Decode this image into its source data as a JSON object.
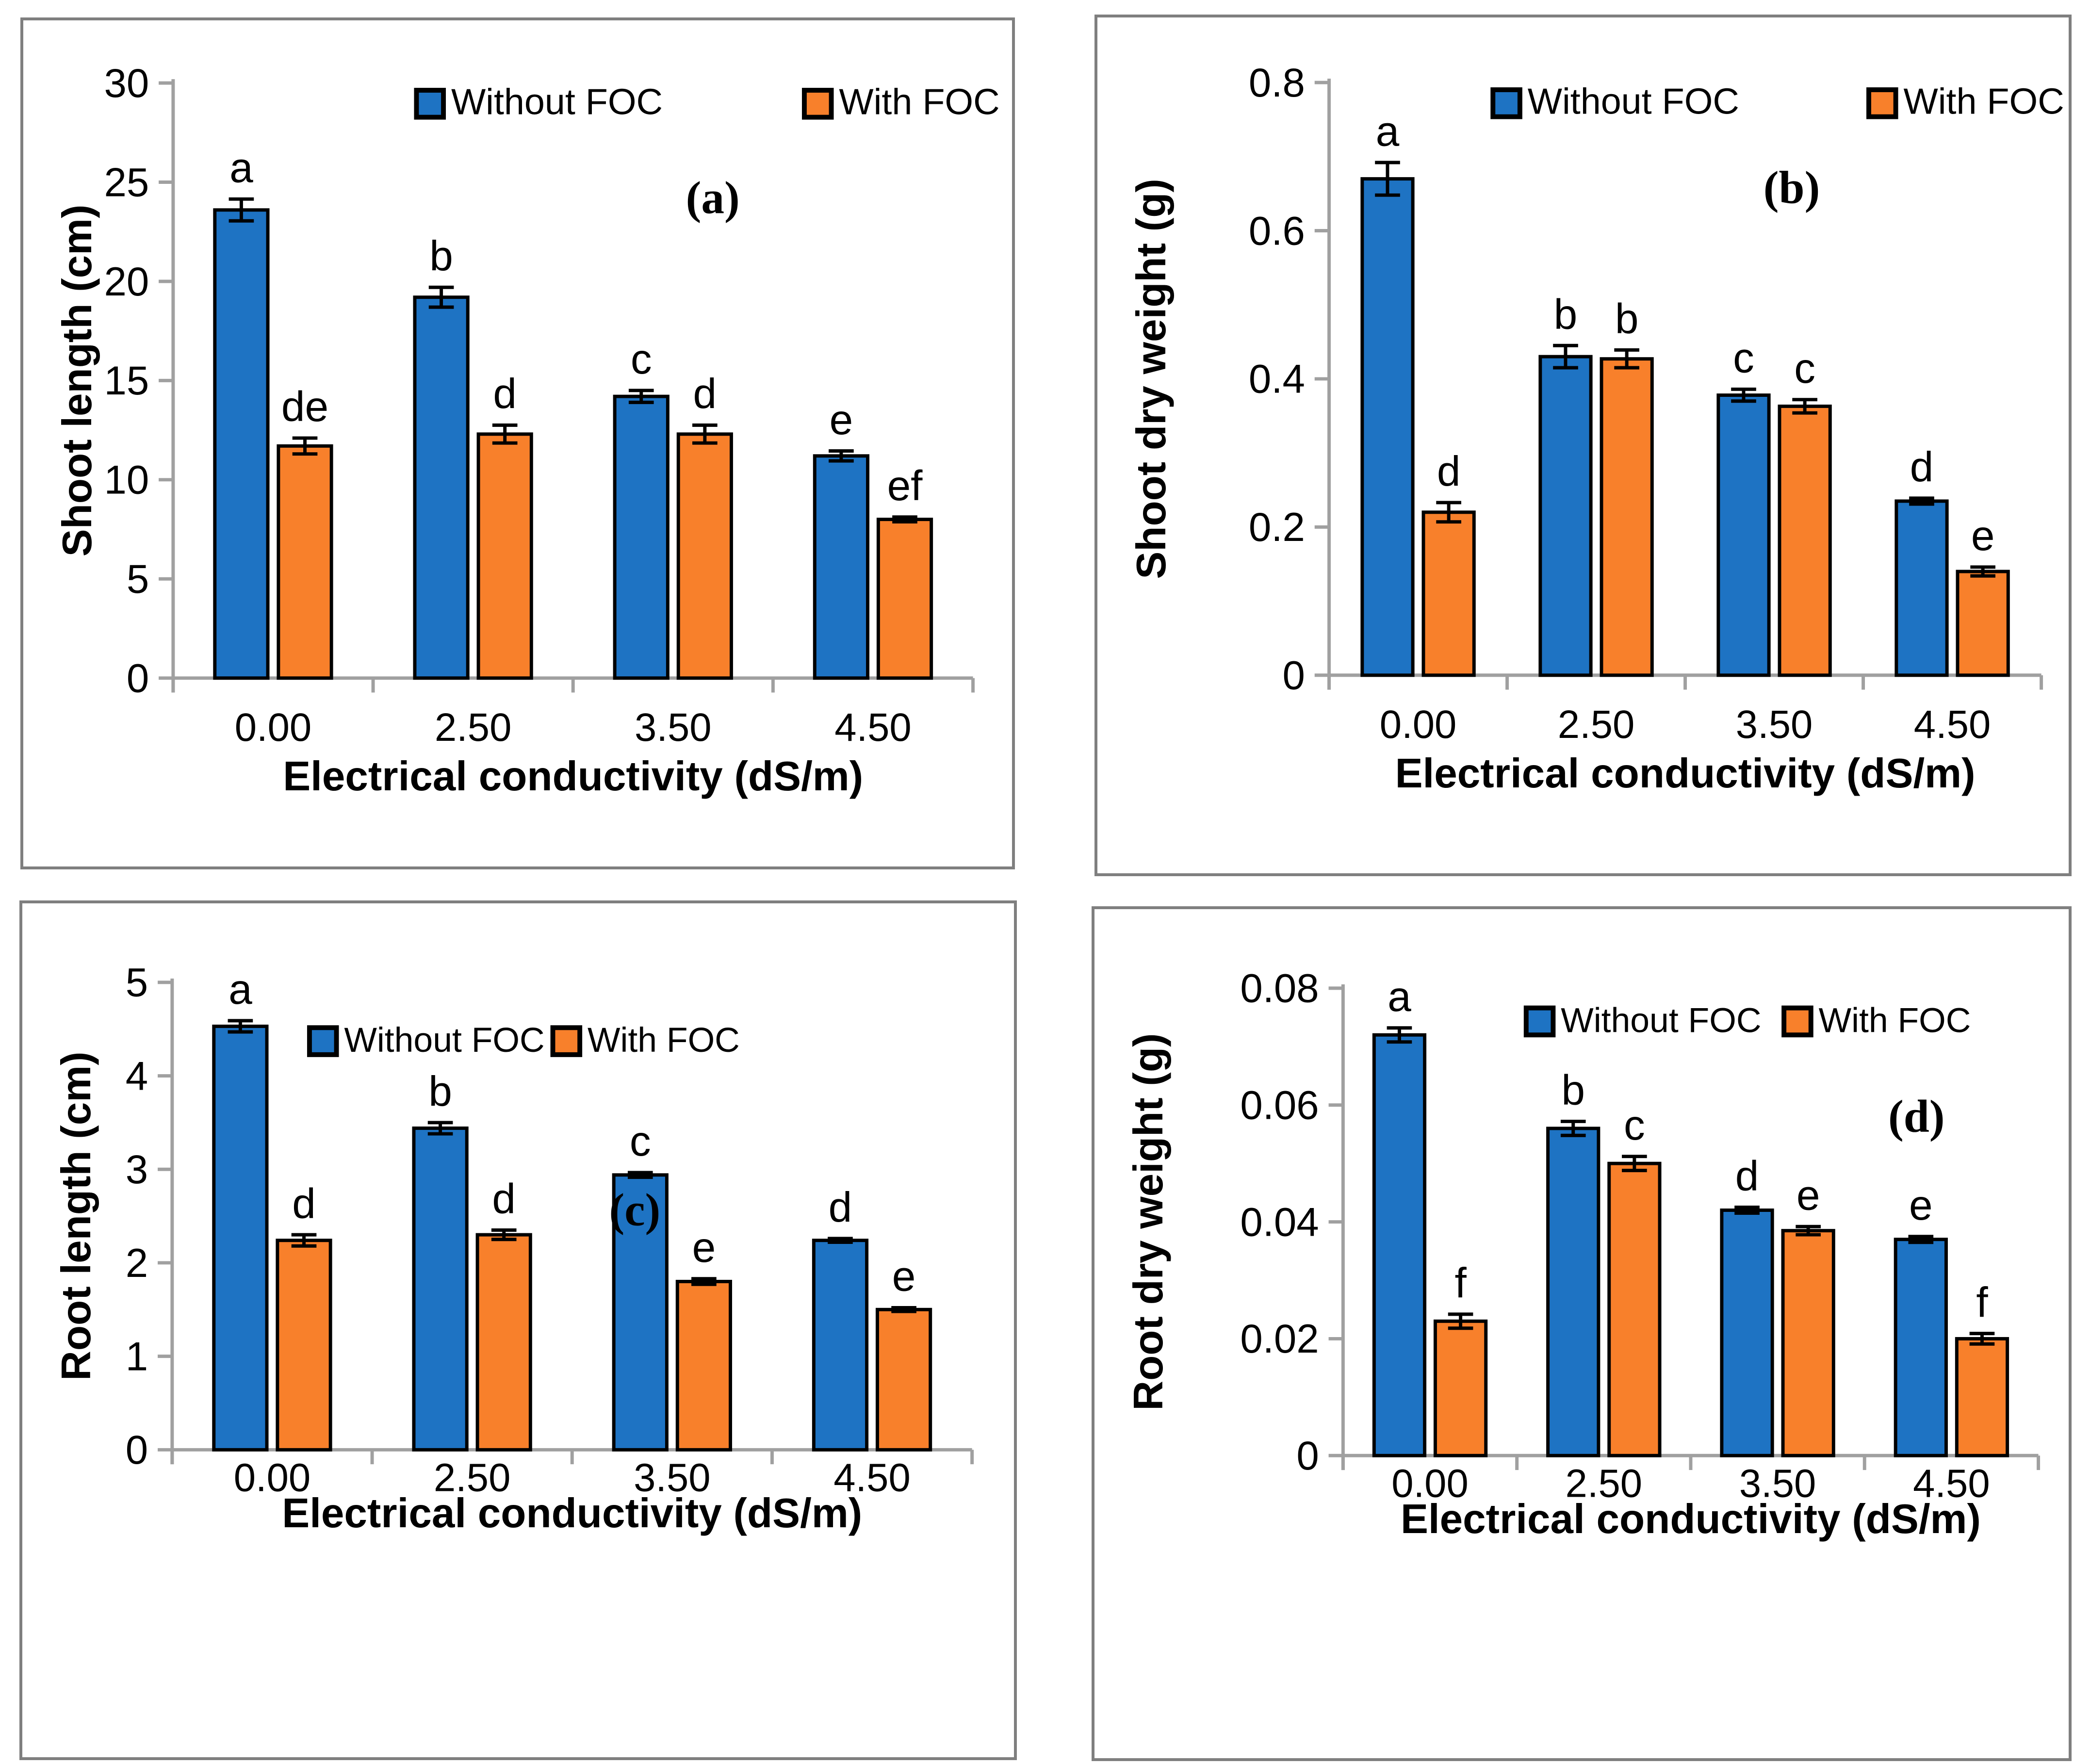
{
  "figure": {
    "colors": {
      "without_foc": "#1e73c3",
      "with_foc": "#f8802b",
      "axis": "#a0a0a0",
      "bar_outline": "#000000",
      "error_bar": "#000000",
      "panel_border": "#7f7f7f",
      "text": "#000000"
    },
    "legend": {
      "without_label": "Without FOC",
      "with_label": "With FOC"
    },
    "xlabel": "Electrical conductivity (dS/m)",
    "categories": [
      "0.00",
      "2.50",
      "3.50",
      "4.50"
    ]
  },
  "chart_data": [
    {
      "type": "bar",
      "panel_label": "(a)",
      "ylabel": "Shoot length (cm)",
      "xlabel": "Electrical conductivity (dS/m)",
      "ylim": [
        0,
        30
      ],
      "ytick_labels": [
        "0",
        "5",
        "10",
        "15",
        "20",
        "25",
        "30"
      ],
      "categories": [
        "0.00",
        "2.50",
        "3.50",
        "4.50"
      ],
      "legend_position": "top-center",
      "grid": "off",
      "series": [
        {
          "name": "Without FOC",
          "values": [
            23.6,
            19.2,
            14.2,
            11.2
          ],
          "errors": [
            0.55,
            0.5,
            0.3,
            0.25
          ],
          "sig_letters": [
            "a",
            "b",
            "c",
            "e"
          ]
        },
        {
          "name": "With FOC",
          "values": [
            11.7,
            12.3,
            12.3,
            8.0
          ],
          "errors": [
            0.4,
            0.45,
            0.45,
            0.12
          ],
          "sig_letters": [
            "de",
            "d",
            "d",
            "ef"
          ]
        }
      ]
    },
    {
      "type": "bar",
      "panel_label": "(b)",
      "ylabel": "Shoot dry weight (g)",
      "xlabel": "Electrical conductivity (dS/m)",
      "ylim": [
        0,
        0.8
      ],
      "ytick_labels": [
        "0",
        "0.2",
        "0.4",
        "0.6",
        "0.8"
      ],
      "categories": [
        "0.00",
        "2.50",
        "3.50",
        "4.50"
      ],
      "legend_position": "top-center",
      "grid": "off",
      "series": [
        {
          "name": "Without FOC",
          "values": [
            0.67,
            0.43,
            0.378,
            0.235
          ],
          "errors": [
            0.022,
            0.015,
            0.008,
            0.004
          ],
          "sig_letters": [
            "a",
            "b",
            "c",
            "d"
          ]
        },
        {
          "name": "With FOC",
          "values": [
            0.22,
            0.427,
            0.363,
            0.14
          ],
          "errors": [
            0.013,
            0.012,
            0.009,
            0.006
          ],
          "sig_letters": [
            "d",
            "b",
            "c",
            "e"
          ]
        }
      ]
    },
    {
      "type": "bar",
      "panel_label": "(c)",
      "ylabel": "Root length (cm)",
      "xlabel": "Electrical conductivity (dS/m)",
      "ylim": [
        0,
        5
      ],
      "ytick_labels": [
        "0",
        "1",
        "2",
        "3",
        "4",
        "5"
      ],
      "categories": [
        "0.00",
        "2.50",
        "3.50",
        "4.50"
      ],
      "legend_position": "top-center",
      "grid": "off",
      "series": [
        {
          "name": "Without FOC",
          "values": [
            4.53,
            3.44,
            2.94,
            2.24
          ],
          "errors": [
            0.06,
            0.06,
            0.025,
            0.02
          ],
          "sig_letters": [
            "a",
            "b",
            "c",
            "d"
          ]
        },
        {
          "name": "With FOC",
          "values": [
            2.24,
            2.3,
            1.8,
            1.5
          ],
          "errors": [
            0.06,
            0.05,
            0.03,
            0.02
          ],
          "sig_letters": [
            "d",
            "d",
            "e",
            "e"
          ]
        }
      ]
    },
    {
      "type": "bar",
      "panel_label": "(d)",
      "ylabel": "Root dry weight (g)",
      "xlabel": "Electrical conductivity (dS/m)",
      "ylim": [
        0,
        0.08
      ],
      "ytick_labels": [
        "0",
        "0.02",
        "0.04",
        "0.06",
        "0.08"
      ],
      "categories": [
        "0.00",
        "2.50",
        "3.50",
        "4.50"
      ],
      "legend_position": "top-center",
      "grid": "off",
      "series": [
        {
          "name": "Without FOC",
          "values": [
            0.072,
            0.056,
            0.042,
            0.037
          ],
          "errors": [
            0.0012,
            0.0012,
            0.0005,
            0.0005
          ],
          "sig_letters": [
            "a",
            "b",
            "d",
            "e"
          ]
        },
        {
          "name": "With FOC",
          "values": [
            0.023,
            0.05,
            0.0385,
            0.02
          ],
          "errors": [
            0.0012,
            0.0012,
            0.0007,
            0.0009
          ],
          "sig_letters": [
            "f",
            "c",
            "e",
            "f"
          ]
        }
      ]
    }
  ]
}
